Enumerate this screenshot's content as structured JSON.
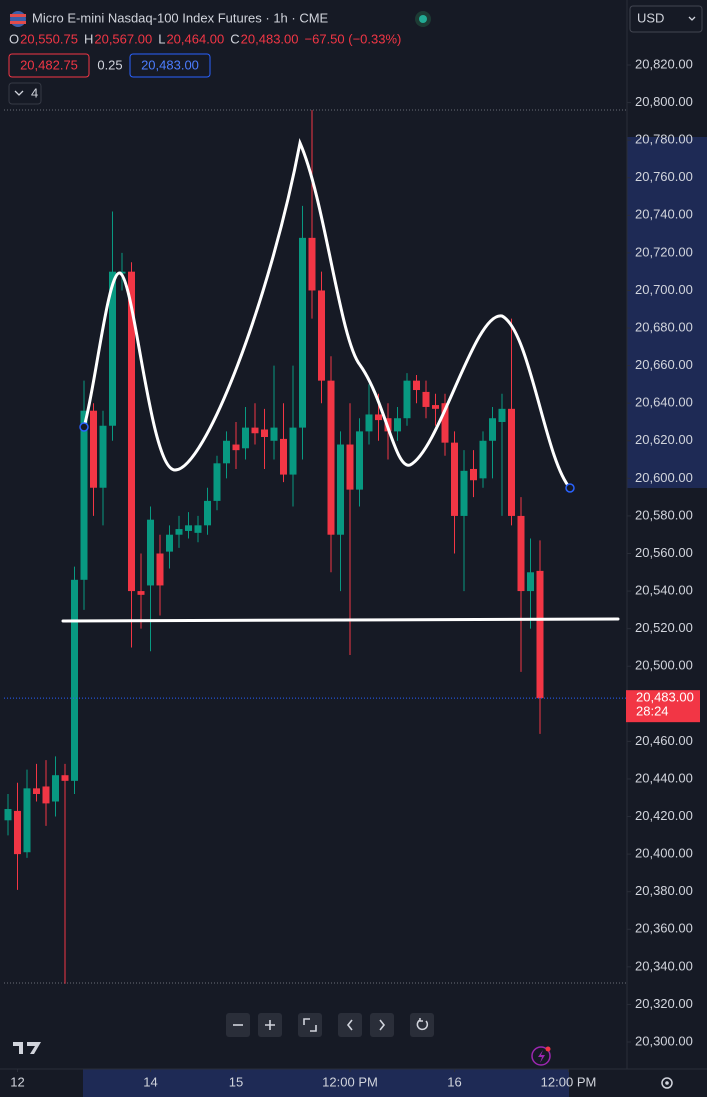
{
  "chart_data": {
    "type": "candlestick",
    "title": "Micro E-mini Nasdaq-100 Index Futures · 1h · CME",
    "legend_values": [
      {
        "label": "O",
        "value": "20,550.75"
      },
      {
        "label": "H",
        "value": "20,567.00"
      },
      {
        "label": "L",
        "value": "20,464.00"
      },
      {
        "label": "C",
        "value": "20,483.00"
      }
    ],
    "change": "−67.50 (−0.33%)",
    "bid": "20,482.75",
    "spread": "0.25",
    "ask": "20,483.00",
    "indicators": "4",
    "currency": "USD",
    "last_price_label": "20,483.00",
    "countdown": "28:24",
    "up_color": "#089981",
    "down_color": "#f23645",
    "grid": false,
    "open": [
      20418,
      20423,
      20401,
      20435,
      20436,
      20428,
      20442,
      20439,
      20546,
      20636,
      20595,
      20628,
      20709,
      20710,
      20540,
      20543,
      20560,
      20561,
      20570,
      20572,
      20571,
      20575,
      20588,
      20608,
      20618,
      20616,
      20627,
      20626,
      20620,
      20621,
      20602,
      20627,
      20728,
      20700,
      20652,
      20570,
      20618,
      20594,
      20625,
      20634,
      20632,
      20625,
      20632,
      20652,
      20646,
      20639,
      20640,
      20619,
      20580,
      20605,
      20600,
      20620,
      20630,
      20637,
      20580,
      20540,
      20550.75
    ],
    "high": [
      20432,
      20438,
      20445,
      20448,
      20450,
      20452,
      20448,
      20553,
      20652,
      20640,
      20636,
      20742,
      20720,
      20715,
      20560,
      20585,
      20570,
      20575,
      20580,
      20582,
      20580,
      20595,
      20612,
      20625,
      20630,
      20638,
      20640,
      20637,
      20660,
      20640,
      20660,
      20745,
      20796,
      20710,
      20665,
      20625,
      20640,
      20632,
      20650,
      20645,
      20640,
      20638,
      20656,
      20655,
      20652,
      20645,
      20645,
      20625,
      20615,
      20615,
      20625,
      20638,
      20645,
      20685,
      20590,
      20568,
      20567
    ],
    "low": [
      20410,
      20381,
      20398,
      20428,
      20415,
      20420,
      20331,
      20432,
      20530,
      20580,
      20575,
      20620,
      20700,
      20510,
      20520,
      20508,
      20527,
      20552,
      20563,
      20568,
      20566,
      20570,
      20583,
      20600,
      20605,
      20610,
      20618,
      20605,
      20610,
      20598,
      20585,
      20610,
      20685,
      20640,
      20550,
      20540,
      20506,
      20585,
      20618,
      20620,
      20610,
      20620,
      20628,
      20640,
      20632,
      20628,
      20612,
      20560,
      20540,
      20590,
      20595,
      20600,
      20580,
      20575,
      20497,
      20520,
      20464
    ],
    "close": [
      20424,
      20400,
      20435,
      20432,
      20427,
      20442,
      20439,
      20546,
      20636,
      20595,
      20628,
      20710,
      20710,
      20540,
      20538,
      20578,
      20543,
      20570,
      20573,
      20575,
      20575,
      20588,
      20608,
      20620,
      20615,
      20627,
      20624,
      20622,
      20627,
      20602,
      20627,
      20728,
      20700,
      20652,
      20570,
      20618,
      20594,
      20625,
      20634,
      20631,
      20625,
      20632,
      20652,
      20647,
      20638,
      20637,
      20619,
      20580,
      20604,
      20599,
      20620,
      20632,
      20637,
      20580,
      20540,
      20550,
      20483
    ],
    "ylim": [
      20290,
      20830
    ],
    "yticks": [
      {
        "value": 20300,
        "label": "20,300.00"
      },
      {
        "value": 20320,
        "label": "20,320.00"
      },
      {
        "value": 20340,
        "label": "20,340.00"
      },
      {
        "value": 20360,
        "label": "20,360.00"
      },
      {
        "value": 20380,
        "label": "20,380.00"
      },
      {
        "value": 20400,
        "label": "20,400.00"
      },
      {
        "value": 20420,
        "label": "20,420.00"
      },
      {
        "value": 20440,
        "label": "20,440.00"
      },
      {
        "value": 20460,
        "label": "20,460.00"
      },
      {
        "value": 20500,
        "label": "20,500.00"
      },
      {
        "value": 20520,
        "label": "20,520.00"
      },
      {
        "value": 20540,
        "label": "20,540.00"
      },
      {
        "value": 20560,
        "label": "20,560.00"
      },
      {
        "value": 20580,
        "label": "20,580.00"
      },
      {
        "value": 20600,
        "label": "20,600.00"
      },
      {
        "value": 20620,
        "label": "20,620.00"
      },
      {
        "value": 20640,
        "label": "20,640.00"
      },
      {
        "value": 20660,
        "label": "20,660.00"
      },
      {
        "value": 20680,
        "label": "20,680.00"
      },
      {
        "value": 20700,
        "label": "20,700.00"
      },
      {
        "value": 20720,
        "label": "20,720.00"
      },
      {
        "value": 20740,
        "label": "20,740.00"
      },
      {
        "value": 20760,
        "label": "20,760.00"
      },
      {
        "value": 20780,
        "label": "20,780.00"
      },
      {
        "value": 20800,
        "label": "20,800.00"
      },
      {
        "value": 20820,
        "label": "20,820.00"
      }
    ],
    "xticks": [
      {
        "value": 1,
        "label": "12"
      },
      {
        "value": 15,
        "label": "14"
      },
      {
        "value": 24,
        "label": "15"
      },
      {
        "value": 36,
        "label": "12:00 PM"
      },
      {
        "value": 47,
        "label": "16"
      },
      {
        "value": 59,
        "label": "12:00 PM"
      }
    ]
  }
}
